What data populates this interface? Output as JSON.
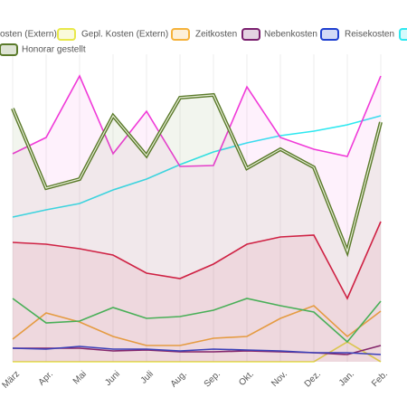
{
  "chart_data": {
    "type": "line",
    "categories": [
      "März",
      "Apr.",
      "Mai",
      "Juni",
      "Juli",
      "Aug.",
      "Sep.",
      "Okt.",
      "Nov.",
      "Dez.",
      "Jan.",
      "Feb."
    ],
    "ylim": [
      0,
      400
    ],
    "series": [
      {
        "name": "osten (Extern)",
        "color": "#2ecc55",
        "values": [
          70,
          43,
          45,
          60,
          48,
          50,
          57,
          70,
          62,
          55,
          22,
          67
        ]
      },
      {
        "name": "Gepl. Kosten (Extern)",
        "color": "#e8e84a",
        "values": [
          0,
          0,
          0,
          0,
          0,
          0,
          0,
          0,
          0,
          0,
          22,
          0
        ]
      },
      {
        "name": "Zeitkosten",
        "color": "#f5b23a",
        "values": [
          25,
          54,
          44,
          28,
          18,
          18,
          26,
          28,
          48,
          62,
          28,
          56
        ]
      },
      {
        "name": "Nebenkosten",
        "color": "#7a1f6e",
        "values": [
          15,
          15,
          15,
          12,
          13,
          11,
          11,
          12,
          11,
          10,
          8,
          18
        ]
      },
      {
        "name": "Reisekosten",
        "color": "#1e3fd0",
        "values": [
          15,
          14,
          17,
          14,
          14,
          12,
          14,
          13,
          12,
          10,
          10,
          8
        ]
      },
      {
        "color": "#2ee8f0",
        "values": [
          160,
          168,
          175,
          190,
          202,
          218,
          232,
          242,
          250,
          255,
          262,
          272
        ]
      },
      {
        "name": "Honorar gestellt",
        "color": "#5a7a2a",
        "values": [
          280,
          192,
          202,
          272,
          228,
          292,
          295,
          214,
          235,
          215,
          122,
          265
        ]
      },
      {
        "color": "#f03ad8",
        "values": [
          230,
          248,
          316,
          230,
          277,
          216,
          217,
          304,
          248,
          235,
          227,
          316
        ]
      },
      {
        "color": "#d8183c",
        "values": [
          132,
          130,
          125,
          118,
          98,
          92,
          108,
          130,
          138,
          140,
          70,
          155
        ]
      }
    ]
  }
}
